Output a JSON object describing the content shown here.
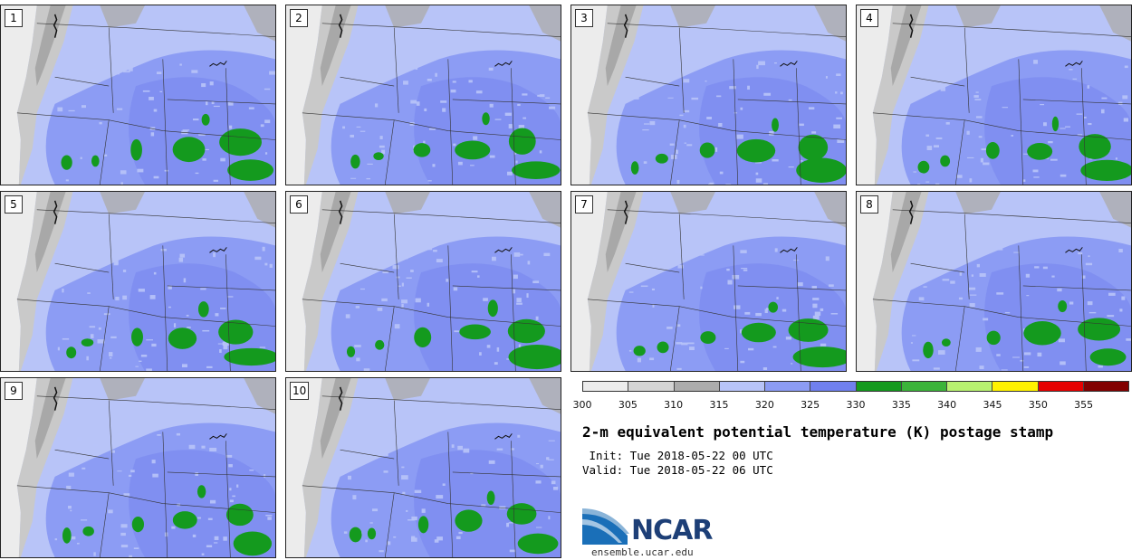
{
  "panels": [
    {
      "label": "1"
    },
    {
      "label": "2"
    },
    {
      "label": "3"
    },
    {
      "label": "4"
    },
    {
      "label": "5"
    },
    {
      "label": "6"
    },
    {
      "label": "7"
    },
    {
      "label": "8"
    },
    {
      "label": "9"
    },
    {
      "label": "10"
    }
  ],
  "colorbar": {
    "ticks": [
      "300",
      "305",
      "310",
      "315",
      "320",
      "325",
      "330",
      "335",
      "340",
      "345",
      "350",
      "355"
    ],
    "colors": [
      "#ececec",
      "#d4d4d4",
      "#acacac",
      "#b8c4f8",
      "#8c9cf4",
      "#7080ee",
      "#149a1e",
      "#3cb43a",
      "#b8f270",
      "#fff200",
      "#e60000",
      "#820000"
    ]
  },
  "title": "2-m equivalent potential temperature (K) postage stamp",
  "init": " Init: Tue 2018-05-22 00 UTC",
  "valid": "Valid: Tue 2018-05-22 06 UTC",
  "logo": {
    "text": "NCAR",
    "url": "ensemble.ucar.edu"
  }
}
